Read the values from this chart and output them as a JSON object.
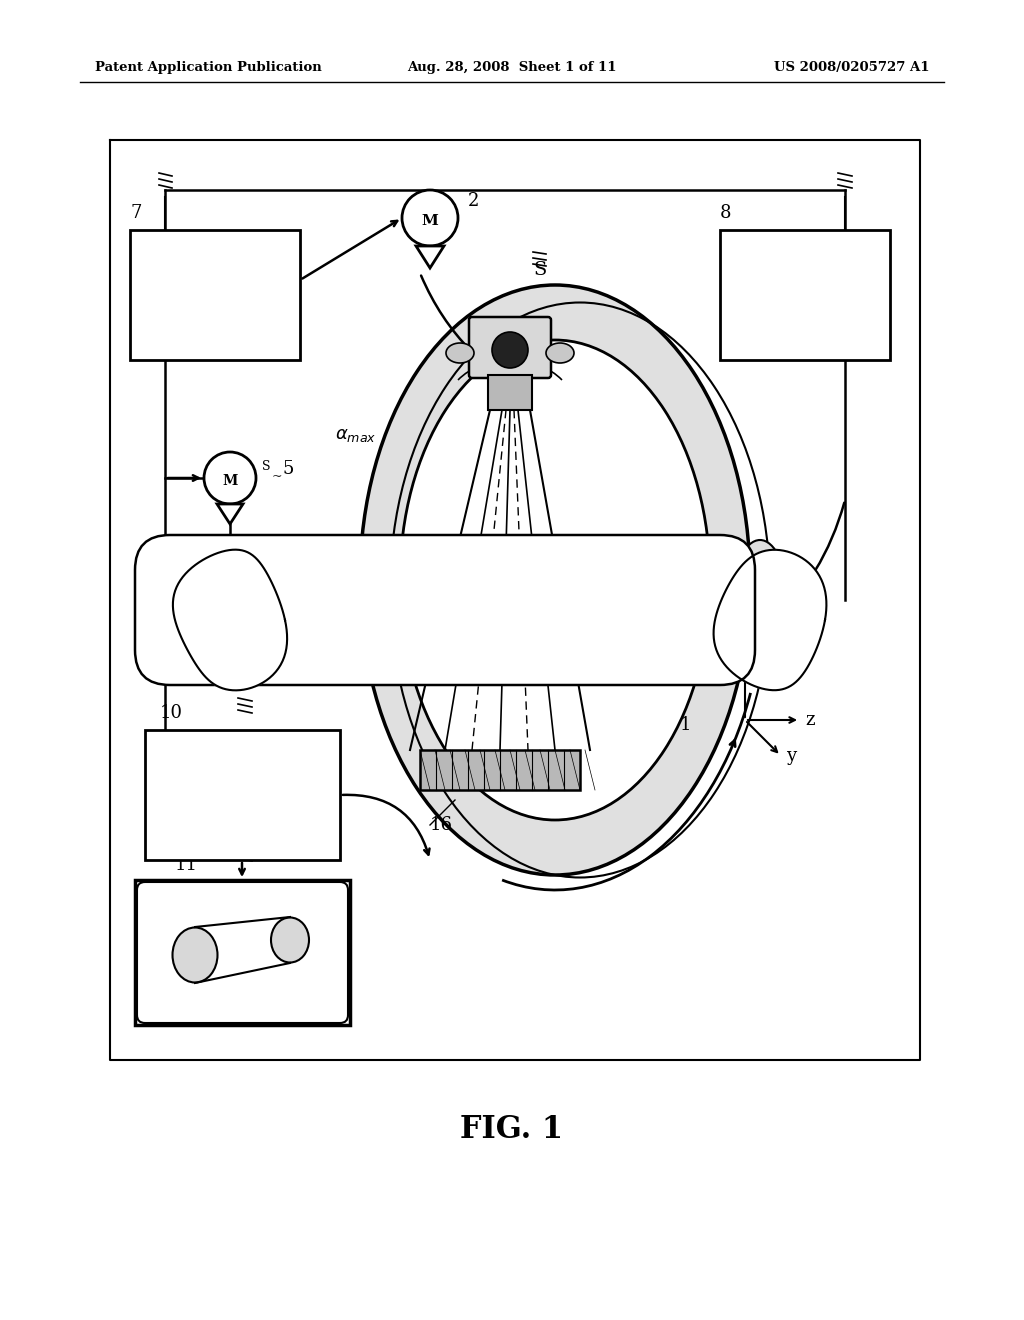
{
  "bg_color": "#ffffff",
  "header_left": "Patent Application Publication",
  "header_mid": "Aug. 28, 2008  Sheet 1 of 11",
  "header_right": "US 2008/0205727 A1",
  "fig_label": "FIG. 1"
}
